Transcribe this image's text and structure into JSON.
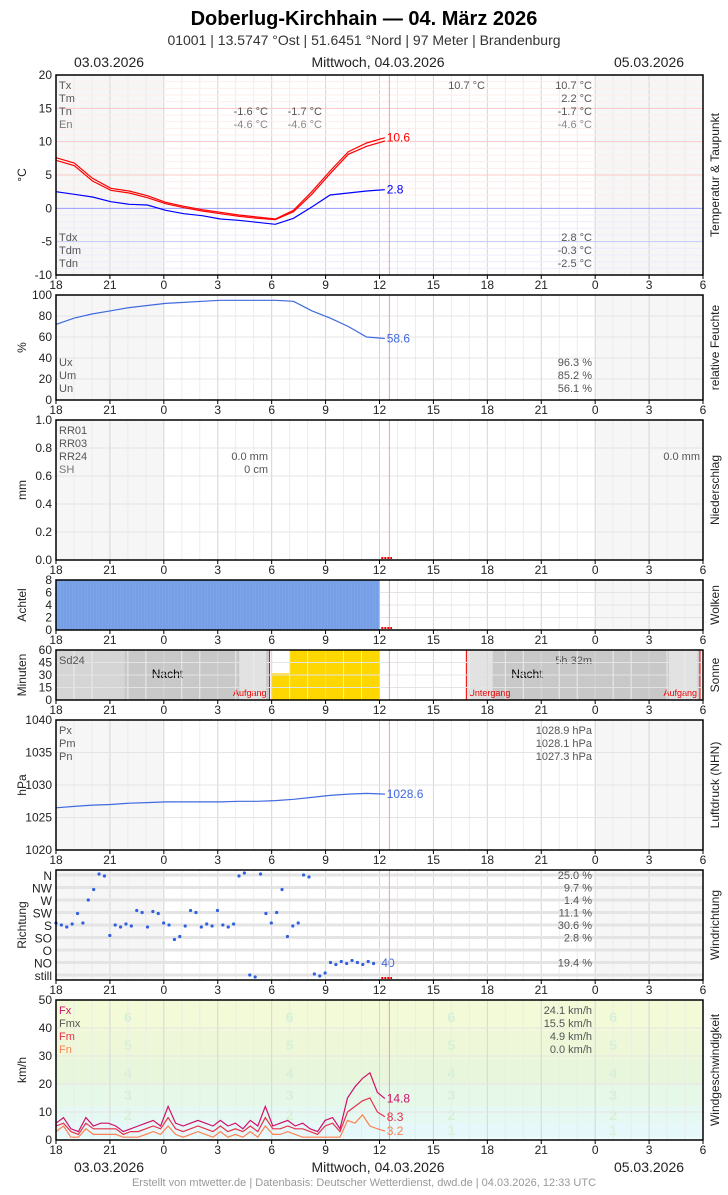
{
  "header": {
    "title": "Doberlug-Kirchhain  —  04. März 2026",
    "subtitle": "01001  |  13.5747 °Ost  |  51.6451 °Nord  |  97 Meter  |  Brandenburg",
    "date_left": "03.03.2026",
    "date_center": "Mittwoch, 04.03.2026",
    "date_right": "05.03.2026"
  },
  "footer": "Erstellt von mtwetter.de | Datenbasis: Deutscher Wetterdienst, dwd.de | 04.03.2026, 12:33 UTC",
  "x_axis": {
    "start": "2026-03-03T18:00",
    "end": "2026-03-05T06:00",
    "tick_labels": [
      "18",
      "21",
      "0",
      "3",
      "6",
      "9",
      "12",
      "15",
      "18",
      "21",
      "0",
      "3",
      "6"
    ],
    "now": "2026-03-04T12:33"
  },
  "colors": {
    "temp": "#ff0000",
    "dew": "#0000ff",
    "humidity": "#4169e1",
    "pressure": "#4169e1",
    "clouds": "#7ba4ea",
    "sun": "#ffd700",
    "wind_dir": "#3060e0",
    "fx": "#d0106a",
    "fm": "#e8304a",
    "fn": "#ff8050",
    "now_line": "#ff9999"
  },
  "chart_data": [
    {
      "id": "temp",
      "type": "line",
      "ylabel": "°C",
      "right_label": "Temperatur & Taupunkt",
      "ylim": [
        -10,
        20
      ],
      "yticks": [
        "20",
        "15",
        "10",
        "5",
        "0",
        "-5",
        "-10"
      ],
      "legend": [
        {
          "label": "Tx",
          "vals": [
            "",
            "10.7 °C",
            "10.7 °C"
          ]
        },
        {
          "label": "Tm",
          "vals": [
            "",
            "",
            "2.2 °C"
          ]
        },
        {
          "label": "Tn",
          "vals": [
            "-1.6 °C",
            "-1.7 °C",
            "-1.7 °C"
          ]
        },
        {
          "label": "En",
          "vals": [
            "-4.6 °C",
            "-4.6 °C",
            "-4.6 °C"
          ]
        }
      ],
      "legend_bottom": [
        {
          "label": "Tdx",
          "vals": [
            "2.8 °C"
          ]
        },
        {
          "label": "Tdm",
          "vals": [
            "-0.3 °C"
          ]
        },
        {
          "label": "Tdn",
          "vals": [
            "-2.5 °C"
          ]
        }
      ],
      "series": [
        {
          "key": "temp",
          "color": "#ff0000",
          "end_label": "10.6",
          "values": [
            7.6,
            6.8,
            4.5,
            3.0,
            2.6,
            1.9,
            0.9,
            0.3,
            -0.2,
            -0.6,
            -1.0,
            -1.3,
            -1.6,
            -0.3,
            2.5,
            5.6,
            8.5,
            9.8,
            10.6
          ]
        },
        {
          "key": "temp2",
          "color": "#ff0000",
          "values": [
            7.2,
            6.4,
            4.1,
            2.7,
            2.3,
            1.6,
            0.7,
            0.1,
            -0.4,
            -0.8,
            -1.2,
            -1.5,
            -1.7,
            -0.5,
            2.1,
            5.2,
            8.1,
            9.3,
            10.1
          ]
        },
        {
          "key": "dew",
          "color": "#0000ff",
          "end_label": "2.8",
          "values": [
            2.5,
            2.1,
            1.7,
            1.0,
            0.6,
            0.5,
            -0.3,
            -0.8,
            -1.1,
            -1.6,
            -1.8,
            -2.1,
            -2.4,
            -1.5,
            0.2,
            2.0,
            2.3,
            2.6,
            2.8
          ]
        }
      ]
    },
    {
      "id": "hum",
      "type": "line",
      "ylabel": "%",
      "right_label": "relative Feuchte",
      "ylim": [
        0,
        100
      ],
      "yticks": [
        "100",
        "80",
        "60",
        "40",
        "20",
        "0"
      ],
      "legend_bottom": [
        {
          "label": "Ux",
          "vals": [
            "96.3 %"
          ]
        },
        {
          "label": "Um",
          "vals": [
            "85.2 %"
          ]
        },
        {
          "label": "Un",
          "vals": [
            "56.1 %"
          ]
        }
      ],
      "series": [
        {
          "key": "humidity",
          "color": "#4169e1",
          "end_label": "58.6",
          "values": [
            72,
            78,
            82,
            85,
            88,
            90,
            92,
            93,
            94,
            95,
            95,
            95,
            95,
            94,
            85,
            78,
            70,
            60,
            58.6
          ]
        }
      ]
    },
    {
      "id": "rain",
      "type": "bar",
      "ylabel": "mm",
      "right_label": "Niederschlag",
      "ylim": [
        0,
        1
      ],
      "yticks": [
        "1.0",
        "0.8",
        "0.6",
        "0.4",
        "0.2",
        "0.0"
      ],
      "legend": [
        {
          "label": "RR01",
          "vals": []
        },
        {
          "label": "RR03",
          "vals": []
        },
        {
          "label": "RR24",
          "vals": [
            "0.0 mm"
          ],
          "right": "0.0 mm"
        },
        {
          "label": "SH",
          "vals": [
            "0 cm"
          ]
        }
      ],
      "values": []
    },
    {
      "id": "cloud",
      "type": "bar",
      "ylabel": "Achtel",
      "right_label": "Wolken",
      "ylim": [
        0,
        8
      ],
      "yticks": [
        "8",
        "6",
        "4",
        "2",
        "0"
      ],
      "bar_value": 8,
      "bar_from": "2026-03-03T18:00",
      "bar_to": "2026-03-04T12:00"
    },
    {
      "id": "sun",
      "type": "bar",
      "ylabel": "Minuten",
      "right_label": "Sonne",
      "ylim": [
        0,
        60
      ],
      "yticks": [
        "60",
        "45",
        "30",
        "15",
        "0"
      ],
      "legend": [
        {
          "label": "Sd24",
          "vals": []
        }
      ],
      "sum_label": "5h 32m",
      "night_label": "Nacht",
      "sunrise_label": "Aufgang",
      "sunset_label": "Untergang",
      "sunrise": [
        "2026-03-04T05:53",
        "2026-03-05T05:50"
      ],
      "sunset": [
        "2026-03-04T16:50"
      ],
      "bars": [
        {
          "from": "2026-03-04T06:00",
          "minutes": 32
        },
        {
          "from": "2026-03-04T07:00",
          "minutes": 60
        },
        {
          "from": "2026-03-04T08:00",
          "minutes": 60
        },
        {
          "from": "2026-03-04T09:00",
          "minutes": 60
        },
        {
          "from": "2026-03-04T10:00",
          "minutes": 60
        },
        {
          "from": "2026-03-04T11:00",
          "minutes": 60
        }
      ]
    },
    {
      "id": "press",
      "type": "line",
      "ylabel": "hPa",
      "right_label": "Luftdruck (NHN)",
      "ylim": [
        1020,
        1040
      ],
      "yticks": [
        "1040",
        "1035",
        "1030",
        "1025",
        "1020"
      ],
      "legend": [
        {
          "label": "Px",
          "vals": [
            "",
            "",
            "1028.9 hPa"
          ]
        },
        {
          "label": "Pm",
          "vals": [
            "",
            "",
            "1028.1 hPa"
          ]
        },
        {
          "label": "Pn",
          "vals": [
            "",
            "",
            "1027.3 hPa"
          ]
        }
      ],
      "series": [
        {
          "key": "pressure",
          "color": "#4169e1",
          "end_label": "1028.6",
          "values": [
            1026.5,
            1026.7,
            1026.9,
            1027.0,
            1027.2,
            1027.3,
            1027.4,
            1027.4,
            1027.4,
            1027.4,
            1027.5,
            1027.5,
            1027.6,
            1027.8,
            1028.1,
            1028.4,
            1028.6,
            1028.7,
            1028.6
          ]
        }
      ]
    },
    {
      "id": "dir",
      "type": "scatter",
      "ylabel": "Richtung",
      "right_label": "Windrichtung",
      "categories": [
        "still",
        "NO",
        "O",
        "SO",
        "S",
        "SW",
        "W",
        "NW",
        "N"
      ],
      "percents": {
        "N": "25.0 %",
        "NW": "9.7 %",
        "W": "1.4 %",
        "SW": "11.1 %",
        "S": "30.6 %",
        "SO": "2.8 %",
        "NO": "19.4 %"
      },
      "end_label": "40",
      "values": [
        "S",
        "S",
        "S",
        "S",
        "SW",
        "S",
        "W",
        "NW",
        "N",
        "N",
        "SO",
        "S",
        "S",
        "S",
        "S",
        "SW",
        "SW",
        "S",
        "SW",
        "SW",
        "S",
        "S",
        "SO",
        "SO",
        "S",
        "SW",
        "SW",
        "S",
        "S",
        "S",
        "SW",
        "S",
        "S",
        "S",
        "N",
        "N",
        "still",
        "still",
        "N",
        "SW",
        "S",
        "SW",
        "NW",
        "SO",
        "S",
        "S",
        "N",
        "N",
        "still",
        "still",
        "still",
        "NO",
        "NO",
        "NO",
        "NO",
        "NO",
        "NO",
        "NO",
        "NO",
        "NO"
      ]
    },
    {
      "id": "wind",
      "type": "line",
      "ylabel": "km/h",
      "right_label": "Windgeschwindigkeit",
      "ylim": [
        0,
        50
      ],
      "yticks": [
        "50",
        "40",
        "30",
        "20",
        "10",
        "0"
      ],
      "legend": [
        {
          "label": "Fx",
          "vals": [
            "",
            "",
            "24.1 km/h"
          ]
        },
        {
          "label": "Fmx",
          "vals": [
            "",
            "",
            "15.5 km/h"
          ]
        },
        {
          "label": "Fm",
          "vals": [
            "",
            "",
            "4.9 km/h"
          ]
        },
        {
          "label": "Fn",
          "vals": [
            "",
            "",
            "0.0 km/h"
          ]
        }
      ],
      "beaufort": [
        "1",
        "2",
        "3",
        "4",
        "5",
        "6"
      ],
      "series": [
        {
          "key": "fx",
          "color": "#d0106a",
          "end_label": "14.8",
          "values": [
            6,
            8,
            4,
            3,
            8,
            5,
            6,
            6,
            5,
            3,
            4,
            5,
            6,
            7,
            5,
            12,
            6,
            5,
            6,
            7,
            6,
            5,
            7,
            5,
            6,
            4,
            7,
            5,
            12,
            5,
            6,
            7,
            5,
            6,
            4,
            3,
            7,
            8,
            4,
            15,
            19,
            22,
            24,
            17,
            14.8
          ]
        },
        {
          "key": "fm",
          "color": "#e8304a",
          "end_label": "8.3",
          "values": [
            5,
            6,
            3,
            2,
            6,
            4,
            4,
            4,
            4,
            2,
            3,
            3,
            4,
            5,
            4,
            8,
            4,
            3,
            4,
            5,
            4,
            3,
            5,
            3,
            4,
            3,
            5,
            3,
            8,
            4,
            4,
            5,
            4,
            4,
            3,
            2,
            5,
            6,
            3,
            10,
            12,
            14,
            15,
            10,
            8.3
          ]
        },
        {
          "key": "fn",
          "color": "#ff8050",
          "end_label": "3.2",
          "values": [
            3,
            5,
            1,
            1,
            4,
            2,
            2,
            2,
            2,
            1,
            1,
            1,
            2,
            3,
            2,
            5,
            2,
            1,
            2,
            3,
            2,
            1,
            3,
            1,
            2,
            1,
            3,
            1,
            5,
            2,
            2,
            3,
            2,
            1,
            1,
            1,
            1,
            1,
            1,
            7,
            6,
            9,
            5,
            4,
            3.2
          ]
        }
      ]
    }
  ]
}
